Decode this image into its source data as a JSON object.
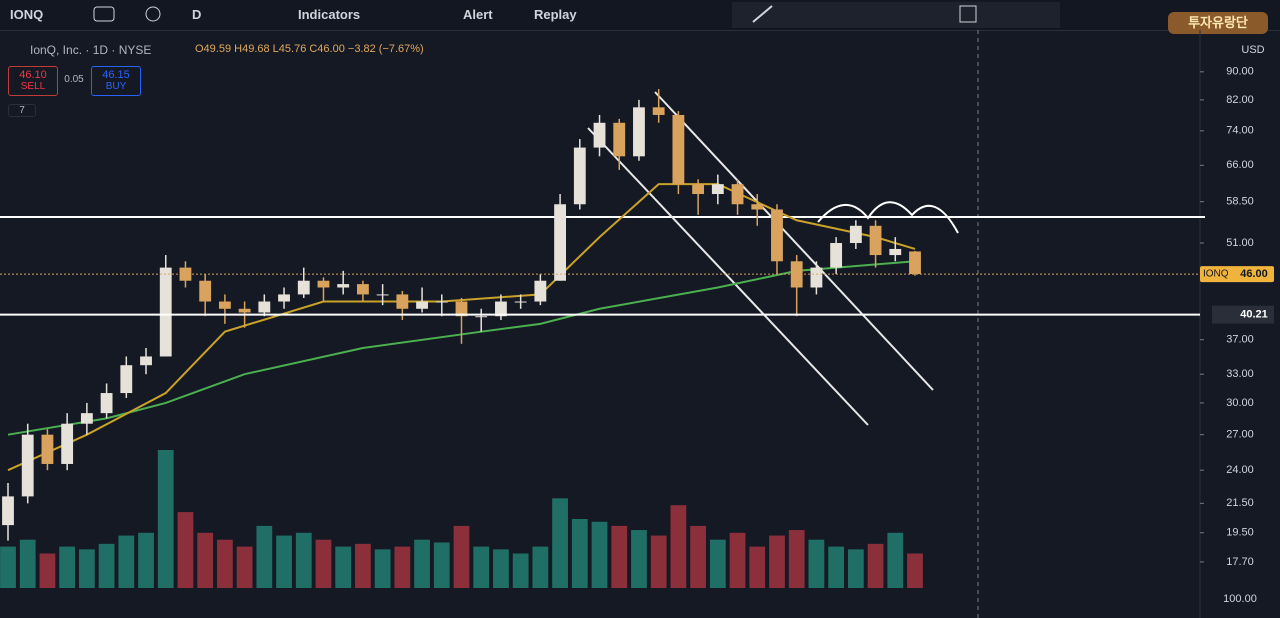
{
  "toolbar": {
    "symbol": "IONQ",
    "interval": "D",
    "indicators": "Indicators",
    "alert": "Alert",
    "replay": "Replay"
  },
  "legend": {
    "name": "IonQ, Inc. · 1D · NYSE",
    "ohlc": "O49.59 H49.68 L45.76 C46.00 −3.82 (−7.67%)"
  },
  "trade": {
    "sell_price": "46.10",
    "sell": "SELL",
    "spread": "0.05",
    "buy_price": "46.15",
    "buy": "BUY",
    "indicator_count": "7"
  },
  "logo": "투자유랑단",
  "currency": "USD",
  "volume_axis_label": "100.00",
  "chart_data": {
    "type": "candlestick",
    "log_scale": true,
    "ylim": [
      15.6,
      103.4
    ],
    "yticks": [
      {
        "value": 90,
        "label": "90.00"
      },
      {
        "value": 82,
        "label": "82.00"
      },
      {
        "value": 74,
        "label": "74.00"
      },
      {
        "value": 66,
        "label": "66.00"
      },
      {
        "value": 58.5,
        "label": "58.50"
      },
      {
        "value": 51,
        "label": "51.00"
      },
      {
        "value": 37,
        "label": "37.00"
      },
      {
        "value": 33,
        "label": "33.00"
      },
      {
        "value": 30,
        "label": "30.00"
      },
      {
        "value": 27,
        "label": "27.00"
      },
      {
        "value": 24,
        "label": "24.00"
      },
      {
        "value": 21.5,
        "label": "21.50"
      },
      {
        "value": 19.5,
        "label": "19.50"
      },
      {
        "value": 17.7,
        "label": "17.70"
      }
    ],
    "last_price": {
      "name": "IONQ",
      "value": 46,
      "label": "46.00"
    },
    "level": {
      "value": 40.21,
      "label": "40.21"
    },
    "up_color": "#e6e2da",
    "down_color": "#d9a35e",
    "candles": [
      [
        20,
        23,
        19,
        22
      ],
      [
        22,
        28,
        21.5,
        27
      ],
      [
        27,
        27.5,
        24,
        24.5
      ],
      [
        24.5,
        29,
        24,
        28
      ],
      [
        28,
        30,
        27,
        29
      ],
      [
        29,
        32,
        28.5,
        31
      ],
      [
        31,
        35,
        30.5,
        34
      ],
      [
        34,
        36,
        33,
        35
      ],
      [
        35,
        49,
        35,
        47
      ],
      [
        47,
        48,
        44,
        45
      ],
      [
        45,
        46,
        40,
        42
      ],
      [
        42,
        43,
        39,
        41
      ],
      [
        41,
        42,
        38.5,
        40.5
      ],
      [
        40.5,
        43,
        40,
        42
      ],
      [
        42,
        44,
        41,
        43
      ],
      [
        43,
        47,
        42.5,
        45
      ],
      [
        45,
        45.5,
        42,
        44
      ],
      [
        44,
        46.5,
        43,
        44.5
      ],
      [
        44.5,
        45,
        42,
        43
      ],
      [
        43,
        44.5,
        41.5,
        43
      ],
      [
        43,
        43.5,
        39.5,
        41
      ],
      [
        41,
        44,
        40.5,
        42
      ],
      [
        42,
        43,
        40,
        42
      ],
      [
        42,
        42.5,
        36.5,
        40
      ],
      [
        40,
        41,
        38,
        40
      ],
      [
        40,
        43,
        39.5,
        42
      ],
      [
        42,
        43,
        41,
        42
      ],
      [
        42,
        46,
        41.5,
        45
      ],
      [
        45,
        60,
        45,
        58
      ],
      [
        58,
        72,
        57,
        70
      ],
      [
        70,
        78,
        68,
        76
      ],
      [
        76,
        77,
        65,
        68
      ],
      [
        68,
        82,
        67,
        80
      ],
      [
        80,
        85,
        76,
        78
      ],
      [
        78,
        79,
        60,
        62
      ],
      [
        62,
        63,
        56,
        60
      ],
      [
        60,
        64,
        58,
        62
      ],
      [
        62,
        63,
        56,
        58
      ],
      [
        58,
        60,
        54,
        57
      ],
      [
        57,
        58,
        46,
        48
      ],
      [
        48,
        49,
        40,
        44
      ],
      [
        44,
        48,
        43,
        47
      ],
      [
        47,
        52,
        46,
        51
      ],
      [
        51,
        55,
        50,
        54
      ],
      [
        54,
        55,
        47,
        49
      ],
      [
        49,
        52,
        48,
        50
      ],
      [
        49.59,
        49.68,
        45.76,
        46
      ]
    ],
    "volume": [
      30,
      35,
      25,
      30,
      28,
      32,
      38,
      40,
      100,
      55,
      40,
      35,
      30,
      45,
      38,
      40,
      35,
      30,
      32,
      28,
      30,
      35,
      33,
      45,
      30,
      28,
      25,
      30,
      65,
      50,
      48,
      45,
      42,
      38,
      60,
      45,
      35,
      40,
      30,
      38,
      42,
      35,
      30,
      28,
      32,
      40,
      25
    ],
    "vlim": [
      0,
      100
    ],
    "ma": [
      {
        "color": "#4caf50",
        "index": [
          0,
          5,
          8,
          12,
          18,
          24,
          27,
          30,
          36,
          40,
          46
        ],
        "values": [
          27,
          28.5,
          30,
          33,
          36,
          38,
          39,
          41,
          44,
          46.5,
          48
        ]
      },
      {
        "color": "#c9a227",
        "index": [
          0,
          4,
          8,
          11,
          16,
          22,
          27,
          30,
          33,
          36,
          40,
          44,
          46
        ],
        "values": [
          24,
          27,
          31,
          38,
          42,
          42,
          43,
          52,
          62,
          62,
          55,
          52,
          50
        ]
      }
    ]
  }
}
